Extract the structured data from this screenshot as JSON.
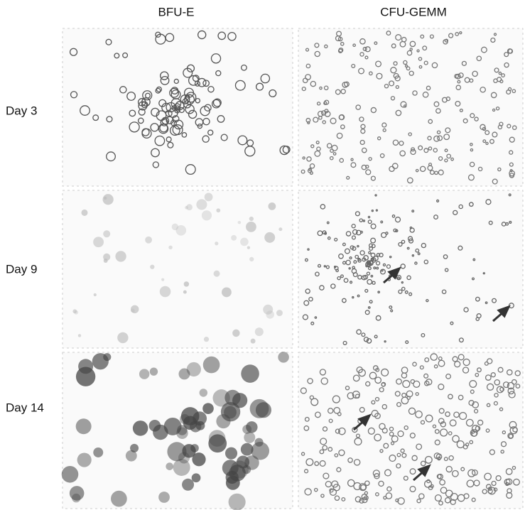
{
  "columns": [
    "BFU-E",
    "CFU-GEMM"
  ],
  "rows": [
    "Day 3",
    "Day 9",
    "Day 14"
  ]
}
